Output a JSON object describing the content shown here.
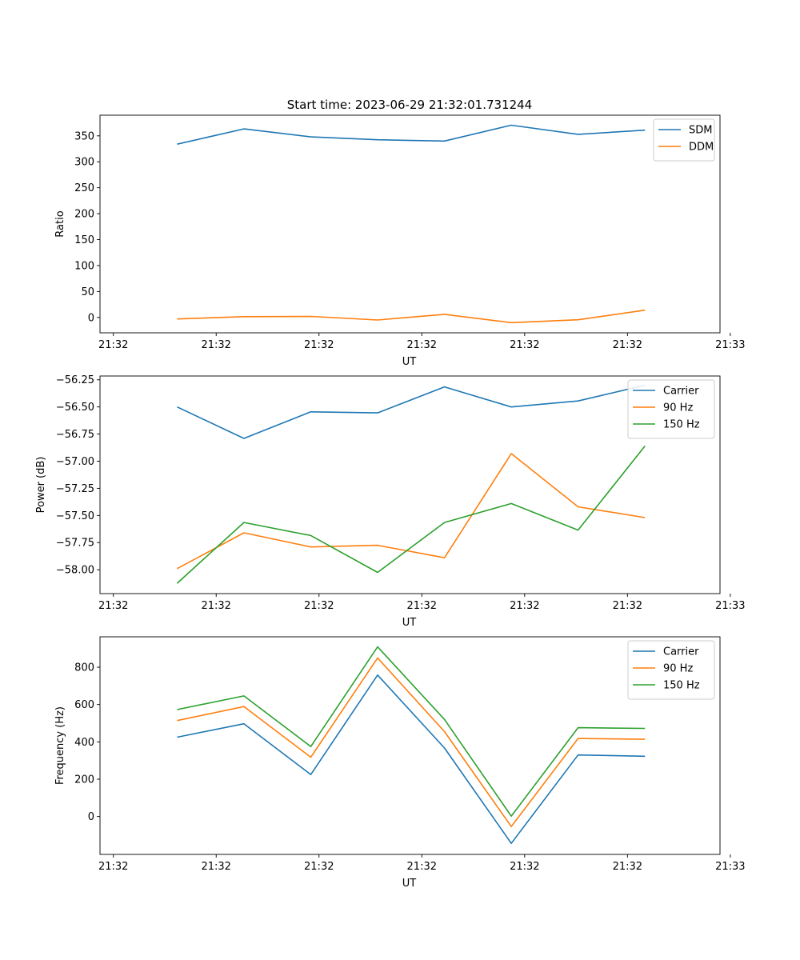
{
  "title": "Start time: 2023-06-29 21:32:01.731244",
  "chart_data": [
    {
      "type": "line",
      "xlabel": "UT",
      "ylabel": "Ratio",
      "x": [
        0.75,
        1.4,
        2.05,
        2.7,
        3.35,
        4.0,
        4.65,
        5.3
      ],
      "xlim": [
        0,
        6.03
      ],
      "x_ticks": [
        0.13,
        1.13,
        2.13,
        3.13,
        4.13,
        5.13,
        6.13
      ],
      "x_tick_labels": [
        "21:32",
        "21:32",
        "21:32",
        "21:32",
        "21:32",
        "21:32",
        "21:33"
      ],
      "ylim": [
        -29.6,
        389.8
      ],
      "y_ticks": [
        0,
        50,
        100,
        150,
        200,
        250,
        300,
        350
      ],
      "y_tick_labels": [
        "0",
        "50",
        "100",
        "150",
        "200",
        "250",
        "300",
        "350"
      ],
      "legend_position": "top-right",
      "series": [
        {
          "name": "SDM",
          "color": "#1f77b4",
          "values": [
            334,
            363.5,
            348,
            342.5,
            340,
            370.5,
            353,
            361
          ]
        },
        {
          "name": "DDM",
          "color": "#ff7f0e",
          "values": [
            -3,
            1.5,
            2,
            -5,
            6,
            -10,
            -4.5,
            14
          ]
        }
      ]
    },
    {
      "type": "line",
      "xlabel": "UT",
      "ylabel": "Power (dB)",
      "x": [
        0.75,
        1.4,
        2.05,
        2.7,
        3.35,
        4.0,
        4.65,
        5.3
      ],
      "xlim": [
        0,
        6.03
      ],
      "x_ticks": [
        0.13,
        1.13,
        2.13,
        3.13,
        4.13,
        5.13,
        6.13
      ],
      "x_tick_labels": [
        "21:32",
        "21:32",
        "21:32",
        "21:32",
        "21:32",
        "21:32",
        "21:33"
      ],
      "ylim": [
        -58.22,
        -56.215
      ],
      "y_ticks": [
        -58.0,
        -57.75,
        -57.5,
        -57.25,
        -57.0,
        -56.75,
        -56.5,
        -56.25
      ],
      "y_tick_labels": [
        "−58.00",
        "−57.75",
        "−57.50",
        "−57.25",
        "−57.00",
        "−56.75",
        "−56.50",
        "−56.25"
      ],
      "legend_position": "top-right",
      "series": [
        {
          "name": "Carrier",
          "color": "#1f77b4",
          "values": [
            -56.5,
            -56.79,
            -56.545,
            -56.555,
            -56.315,
            -56.5,
            -56.445,
            -56.3
          ]
        },
        {
          "name": "90 Hz",
          "color": "#ff7f0e",
          "values": [
            -57.99,
            -57.66,
            -57.79,
            -57.775,
            -57.89,
            -56.93,
            -57.42,
            -57.52
          ]
        },
        {
          "name": "150 Hz",
          "color": "#2ca02c",
          "values": [
            -58.125,
            -57.565,
            -57.685,
            -58.025,
            -57.565,
            -57.39,
            -57.635,
            -56.86
          ]
        }
      ]
    },
    {
      "type": "line",
      "xlabel": "UT",
      "ylabel": "Frequency (Hz)",
      "x": [
        0.75,
        1.4,
        2.05,
        2.7,
        3.35,
        4.0,
        4.65,
        5.3
      ],
      "xlim": [
        0,
        6.03
      ],
      "x_ticks": [
        0.13,
        1.13,
        2.13,
        3.13,
        4.13,
        5.13,
        6.13
      ],
      "x_tick_labels": [
        "21:32",
        "21:32",
        "21:32",
        "21:32",
        "21:32",
        "21:32",
        "21:33"
      ],
      "ylim": [
        -203,
        963
      ],
      "y_ticks": [
        0,
        200,
        400,
        600,
        800
      ],
      "y_tick_labels": [
        "0",
        "200",
        "400",
        "600",
        "800"
      ],
      "legend_position": "top-right",
      "series": [
        {
          "name": "Carrier",
          "color": "#1f77b4",
          "values": [
            425,
            497,
            225,
            758,
            367,
            -144,
            330,
            323
          ]
        },
        {
          "name": "90 Hz",
          "color": "#ff7f0e",
          "values": [
            514,
            589,
            318,
            850,
            455,
            -54,
            418,
            414
          ]
        },
        {
          "name": "150 Hz",
          "color": "#2ca02c",
          "values": [
            573,
            646,
            375,
            909,
            520,
            2,
            476,
            472
          ]
        }
      ]
    }
  ]
}
